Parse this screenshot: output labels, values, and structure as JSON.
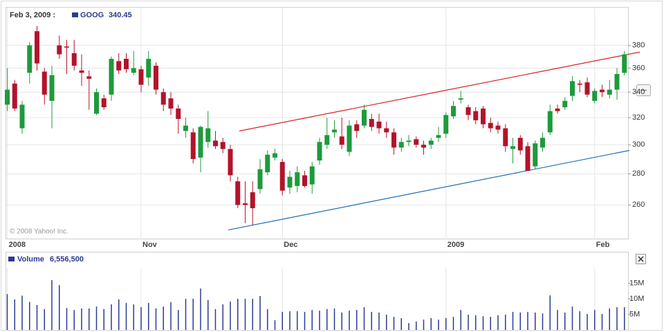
{
  "chart_data": [
    {
      "type": "candlestick",
      "date_label": "Feb 3, 2009 :",
      "symbol": "GOOG",
      "last": "340.45",
      "watermark": "© 2008 Yahoo! Inc.",
      "categories": [
        "2008",
        null,
        null,
        null,
        null,
        null,
        null,
        null,
        null,
        null,
        null,
        null,
        null,
        null,
        null,
        null,
        null,
        null,
        "Nov",
        null,
        null,
        null,
        null,
        null,
        null,
        null,
        null,
        null,
        null,
        null,
        null,
        null,
        null,
        null,
        null,
        null,
        null,
        "Dec",
        null,
        null,
        null,
        null,
        null,
        null,
        null,
        null,
        null,
        null,
        null,
        null,
        null,
        null,
        null,
        null,
        null,
        null,
        null,
        null,
        null,
        "2009",
        null,
        null,
        null,
        null,
        null,
        null,
        null,
        null,
        null,
        null,
        null,
        null,
        null,
        null,
        null,
        null,
        null,
        null,
        null,
        "Feb",
        null,
        null,
        null,
        null
      ],
      "open": [
        330,
        347,
        312,
        356,
        393,
        357,
        333,
        380,
        379,
        373,
        358,
        353,
        323,
        335,
        338,
        366,
        368,
        356,
        359,
        352,
        362,
        340,
        335,
        327,
        310,
        309,
        291,
        302,
        303,
        302,
        297,
        275,
        261,
        268,
        270,
        281,
        291,
        288,
        271,
        272,
        279,
        273,
        289,
        300,
        309,
        306,
        295,
        315,
        314,
        319,
        317,
        312,
        309,
        298,
        302,
        304,
        300,
        300,
        305,
        308,
        321,
        334,
        328,
        325,
        327,
        316,
        314,
        312,
        297,
        305,
        299,
        285,
        298,
        309,
        327,
        328,
        337,
        347,
        348,
        333,
        342,
        338,
        342,
        356
      ],
      "high": [
        360,
        350,
        333,
        383,
        398,
        360,
        362,
        389,
        385,
        385,
        372,
        358,
        343,
        338,
        370,
        373,
        373,
        375,
        362,
        375,
        365,
        343,
        340,
        330,
        320,
        312,
        314,
        325,
        310,
        305,
        300,
        278,
        275,
        275,
        290,
        296,
        297,
        290,
        282,
        285,
        282,
        288,
        305,
        320,
        318,
        320,
        318,
        318,
        330,
        323,
        323,
        317,
        312,
        305,
        307,
        306,
        303,
        305,
        313,
        324,
        333,
        341,
        330,
        328,
        329,
        320,
        317,
        315,
        305,
        307,
        302,
        303,
        309,
        330,
        330,
        336,
        353,
        350,
        352,
        343,
        346,
        350,
        360,
        375
      ],
      "low": [
        325,
        325,
        308,
        347,
        358,
        330,
        312,
        368,
        355,
        358,
        345,
        326,
        322,
        326,
        333,
        355,
        356,
        354,
        340,
        345,
        338,
        325,
        322,
        308,
        305,
        287,
        281,
        298,
        297,
        294,
        275,
        258,
        249,
        248,
        267,
        279,
        289,
        266,
        267,
        268,
        271,
        267,
        286,
        297,
        305,
        297,
        292,
        305,
        312,
        310,
        308,
        305,
        293,
        295,
        299,
        298,
        293,
        297,
        302,
        305,
        319,
        331,
        318,
        315,
        312,
        309,
        308,
        295,
        287,
        293,
        282,
        283,
        295,
        307,
        323,
        326,
        333,
        340,
        336,
        331,
        336,
        335,
        334,
        354
      ],
      "close": [
        342,
        327,
        330,
        380,
        364,
        338,
        354,
        372,
        378,
        362,
        356,
        351,
        340,
        328,
        368,
        358,
        359,
        360,
        346,
        368,
        342,
        330,
        327,
        319,
        314,
        290,
        313,
        312,
        299,
        297,
        279,
        260,
        260,
        258,
        283,
        293,
        294,
        269,
        278,
        281,
        272,
        285,
        302,
        307,
        311,
        300,
        314,
        310,
        326,
        313,
        312,
        309,
        298,
        302,
        303,
        300,
        298,
        303,
        307,
        322,
        329,
        335,
        322,
        318,
        315,
        312,
        311,
        299,
        299,
        296,
        282,
        301,
        305,
        325,
        325,
        333,
        349,
        346,
        338,
        341,
        340,
        342,
        355,
        372
      ],
      "up_color": "#1e9a3c",
      "down_color": "#b3132b",
      "ylim": [
        240,
        415
      ],
      "yticks": [
        260,
        280,
        300,
        320,
        340,
        360,
        380
      ],
      "log_scale": true,
      "grid": true,
      "trendlines": [
        {
          "color": "#d82020",
          "values": [
            310,
            374
          ]
        },
        {
          "color": "#1c6fb5",
          "values": [
            245,
            296
          ]
        }
      ]
    },
    {
      "type": "bar",
      "label": "Volume",
      "last": "6,556,500",
      "color": "#2b3a8f",
      "values": [
        11500000,
        9800000,
        11000000,
        9000000,
        8000000,
        6700000,
        16000000,
        14400000,
        7000000,
        6400000,
        6900000,
        6900000,
        7500000,
        6700000,
        8200000,
        9800000,
        8700000,
        8200000,
        7300000,
        8700000,
        6900000,
        7500000,
        8900000,
        6400000,
        10000000,
        10000000,
        13300000,
        9600000,
        6700000,
        8200000,
        9100000,
        10000000,
        10000000,
        10000000,
        10900000,
        6700000,
        3100000,
        5800000,
        6000000,
        6000000,
        5800000,
        6400000,
        6200000,
        6700000,
        6900000,
        5600000,
        6200000,
        6400000,
        7300000,
        5800000,
        5600000,
        4900000,
        4200000,
        3800000,
        2200000,
        2700000,
        3300000,
        3800000,
        3300000,
        3800000,
        4200000,
        6400000,
        4900000,
        4700000,
        4400000,
        4200000,
        4700000,
        4900000,
        5800000,
        5600000,
        5800000,
        5600000,
        5300000,
        11100000,
        6400000,
        5600000,
        7500000,
        6000000,
        5100000,
        6400000,
        5100000,
        6900000,
        7300000,
        7300000
      ],
      "ylim": [
        0,
        20000000
      ],
      "yticks": [
        {
          "value": 5000000,
          "label": "5M"
        },
        {
          "value": 10000000,
          "label": "10M"
        },
        {
          "value": 15000000,
          "label": "15M"
        }
      ]
    }
  ]
}
